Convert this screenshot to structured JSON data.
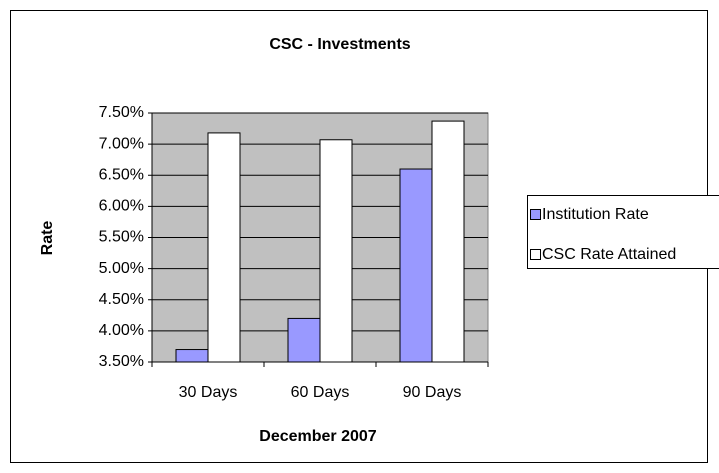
{
  "chart_data": {
    "type": "bar",
    "title": "CSC - Investments",
    "x_label": "December 2007",
    "y_label": "Rate",
    "categories": [
      "30 Days",
      "60 Days",
      "90 Days"
    ],
    "series": [
      {
        "name": "Institution Rate",
        "color": "#9999ff",
        "values": [
          3.7,
          4.2,
          6.6
        ]
      },
      {
        "name": "CSC Rate Attained",
        "color": "#ffffff",
        "values": [
          7.18,
          7.07,
          7.37
        ]
      }
    ],
    "ylim": [
      3.5,
      7.5
    ],
    "yticks": [
      {
        "value": 3.5,
        "label": "3.50%"
      },
      {
        "value": 4.0,
        "label": "4.00%"
      },
      {
        "value": 4.5,
        "label": "4.50%"
      },
      {
        "value": 5.0,
        "label": "5.00%"
      },
      {
        "value": 5.5,
        "label": "5.50%"
      },
      {
        "value": 6.0,
        "label": "6.00%"
      },
      {
        "value": 6.5,
        "label": "6.50%"
      },
      {
        "value": 7.0,
        "label": "7.00%"
      },
      {
        "value": 7.5,
        "label": "7.50%"
      }
    ],
    "grid": true,
    "plot_background": "#c0c0c0",
    "legend": "right"
  }
}
